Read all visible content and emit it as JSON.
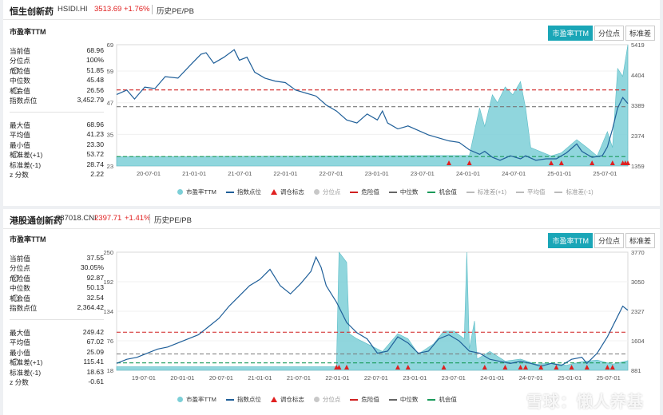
{
  "panels": [
    {
      "title": {
        "name": "恒生创新药",
        "code": "HSIDI.HI",
        "price": "3513.69",
        "change": "+1.76%",
        "history": "历史PE/PB"
      },
      "subtitle": "市盈率TTM",
      "tabs": [
        "市盈率TTM",
        "分位点",
        "标准差"
      ],
      "stats_top": [
        {
          "label": "当前值",
          "value": "68.96",
          "help": false
        },
        {
          "label": "分位点",
          "value": "100%",
          "help": false
        },
        {
          "label": "危险值",
          "value": "51.85",
          "help": true
        },
        {
          "label": "中位数",
          "value": "45.48",
          "help": false
        },
        {
          "label": "机会值",
          "value": "26.56",
          "help": true
        },
        {
          "label": "指数点位",
          "value": "3,452.79",
          "help": false
        }
      ],
      "stats_bottom": [
        {
          "label": "最大值",
          "value": "68.96",
          "help": false
        },
        {
          "label": "平均值",
          "value": "41.23",
          "help": false
        },
        {
          "label": "最小值",
          "value": "23.30",
          "help": false
        },
        {
          "label": "标准差(+1)",
          "value": "53.72",
          "help": true
        },
        {
          "label": "标准差(-1)",
          "value": "28.74",
          "help": false
        },
        {
          "label": "z 分数",
          "value": "2.22",
          "help": false
        }
      ],
      "legend": [
        {
          "label": "市盈率TTM",
          "sym": "dot",
          "color": "#7ccfd7",
          "muted": false
        },
        {
          "label": "指数点位",
          "sym": "line",
          "color": "#1f5f99",
          "muted": false
        },
        {
          "label": "调仓标志",
          "sym": "tri",
          "color": "#e02020",
          "muted": false
        },
        {
          "label": "分位点",
          "sym": "dot",
          "color": "#c8c8c8",
          "muted": true
        },
        {
          "label": "危险值",
          "sym": "dash",
          "color": "#d02020",
          "muted": false
        },
        {
          "label": "中位数",
          "sym": "dash",
          "color": "#666666",
          "muted": false
        },
        {
          "label": "机会值",
          "sym": "dash",
          "color": "#1a9a5a",
          "muted": false
        },
        {
          "label": "标准差(+1)",
          "sym": "dash",
          "color": "#bbbbbb",
          "muted": true
        },
        {
          "label": "平均值",
          "sym": "dash",
          "color": "#bbbbbb",
          "muted": true
        },
        {
          "label": "标准差(-1)",
          "sym": "dash",
          "color": "#bbbbbb",
          "muted": true
        }
      ]
    },
    {
      "title": {
        "name": "港股通创新药",
        "code": "987018.CNI",
        "price": "2397.71",
        "change": "+1.41%",
        "history": "历史PE/PB"
      },
      "subtitle": "市盈率TTM",
      "tabs": [
        "市盈率TTM",
        "分位点",
        "标准差"
      ],
      "stats_top": [
        {
          "label": "当前值",
          "value": "37.55",
          "help": false
        },
        {
          "label": "分位点",
          "value": "30.05%",
          "help": false
        },
        {
          "label": "危险值",
          "value": "92.87",
          "help": true
        },
        {
          "label": "中位数",
          "value": "50.13",
          "help": false
        },
        {
          "label": "机会值",
          "value": "32.54",
          "help": true
        },
        {
          "label": "指数点位",
          "value": "2,364.42",
          "help": false
        }
      ],
      "stats_bottom": [
        {
          "label": "最大值",
          "value": "249.42",
          "help": false
        },
        {
          "label": "平均值",
          "value": "67.02",
          "help": false
        },
        {
          "label": "最小值",
          "value": "25.09",
          "help": false
        },
        {
          "label": "标准差(+1)",
          "value": "115.41",
          "help": true
        },
        {
          "label": "标准差(-1)",
          "value": "18.63",
          "help": false
        },
        {
          "label": "z 分数",
          "value": "-0.61",
          "help": false
        }
      ],
      "legend": [
        {
          "label": "市盈率TTM",
          "sym": "dot",
          "color": "#7ccfd7",
          "muted": false
        },
        {
          "label": "指数点位",
          "sym": "line",
          "color": "#1f5f99",
          "muted": false
        },
        {
          "label": "调仓标志",
          "sym": "tri",
          "color": "#e02020",
          "muted": false
        },
        {
          "label": "分位点",
          "sym": "dot",
          "color": "#c8c8c8",
          "muted": true
        },
        {
          "label": "危险值",
          "sym": "dash",
          "color": "#d02020",
          "muted": false
        },
        {
          "label": "中位数",
          "sym": "dash",
          "color": "#666666",
          "muted": false
        },
        {
          "label": "机会值",
          "sym": "dash",
          "color": "#1a9a5a",
          "muted": false
        }
      ]
    }
  ],
  "watermark": "雪球：懒人养基",
  "chart_data": [
    {
      "type": "area",
      "title": "恒生创新药 市盈率TTM",
      "x_ticks": [
        "20-07-01",
        "21-01-01",
        "21-07-01",
        "22-01-01",
        "22-07-01",
        "23-01-01",
        "23-07-01",
        "24-01-01",
        "24-07-01",
        "25-01-01",
        "25-07-01"
      ],
      "y_left": {
        "ticks": [
          23,
          35,
          47,
          59,
          69
        ],
        "range": [
          23,
          69
        ]
      },
      "y_right": {
        "ticks": [
          1359,
          2374,
          3389,
          4404,
          5419
        ],
        "range": [
          1359,
          5419
        ]
      },
      "reference_lines": {
        "danger": 51.85,
        "median": 45.48,
        "opportunity": 26.56
      },
      "pe_series": [
        [
          0.0,
          26.5
        ],
        [
          0.69,
          27
        ],
        [
          0.71,
          45
        ],
        [
          0.72,
          38
        ],
        [
          0.735,
          50
        ],
        [
          0.745,
          47
        ],
        [
          0.76,
          53
        ],
        [
          0.775,
          50
        ],
        [
          0.79,
          55
        ],
        [
          0.8,
          45
        ],
        [
          0.81,
          30
        ],
        [
          0.85,
          26.8
        ],
        [
          0.87,
          28
        ],
        [
          0.9,
          33
        ],
        [
          0.92,
          30
        ],
        [
          0.94,
          26.8
        ],
        [
          0.96,
          36
        ],
        [
          0.97,
          30
        ],
        [
          0.98,
          60
        ],
        [
          0.99,
          57
        ],
        [
          1.0,
          69
        ]
      ],
      "index_series": [
        [
          0.0,
          3750
        ],
        [
          0.02,
          3900
        ],
        [
          0.035,
          3600
        ],
        [
          0.055,
          4000
        ],
        [
          0.075,
          3950
        ],
        [
          0.095,
          4350
        ],
        [
          0.12,
          4300
        ],
        [
          0.145,
          4750
        ],
        [
          0.165,
          5100
        ],
        [
          0.175,
          5150
        ],
        [
          0.19,
          4800
        ],
        [
          0.21,
          5000
        ],
        [
          0.23,
          5250
        ],
        [
          0.24,
          4900
        ],
        [
          0.255,
          5000
        ],
        [
          0.27,
          4500
        ],
        [
          0.29,
          4300
        ],
        [
          0.31,
          4200
        ],
        [
          0.33,
          4150
        ],
        [
          0.35,
          3900
        ],
        [
          0.37,
          3800
        ],
        [
          0.39,
          3700
        ],
        [
          0.41,
          3400
        ],
        [
          0.43,
          3200
        ],
        [
          0.45,
          2900
        ],
        [
          0.47,
          2800
        ],
        [
          0.49,
          3100
        ],
        [
          0.51,
          2900
        ],
        [
          0.52,
          3200
        ],
        [
          0.53,
          2800
        ],
        [
          0.55,
          2600
        ],
        [
          0.57,
          2700
        ],
        [
          0.59,
          2550
        ],
        [
          0.61,
          2400
        ],
        [
          0.63,
          2300
        ],
        [
          0.65,
          2200
        ],
        [
          0.67,
          2150
        ],
        [
          0.69,
          1900
        ],
        [
          0.71,
          1750
        ],
        [
          0.72,
          1850
        ],
        [
          0.735,
          1650
        ],
        [
          0.75,
          1550
        ],
        [
          0.77,
          1700
        ],
        [
          0.79,
          1600
        ],
        [
          0.8,
          1700
        ],
        [
          0.82,
          1550
        ],
        [
          0.84,
          1600
        ],
        [
          0.86,
          1600
        ],
        [
          0.88,
          1800
        ],
        [
          0.9,
          2100
        ],
        [
          0.91,
          1850
        ],
        [
          0.93,
          1650
        ],
        [
          0.95,
          1700
        ],
        [
          0.96,
          2000
        ],
        [
          0.97,
          2600
        ],
        [
          0.98,
          3300
        ],
        [
          0.99,
          3650
        ],
        [
          1.0,
          3450
        ]
      ],
      "rebalance_marks_x": [
        0.65,
        0.69,
        0.85,
        0.87,
        0.93,
        0.97,
        0.99,
        0.995,
        1.0
      ]
    },
    {
      "type": "area",
      "title": "港股通创新药 市盈率TTM",
      "x_ticks": [
        "19-07-01",
        "20-01-01",
        "20-07-01",
        "21-01-01",
        "21-07-01",
        "22-01-01",
        "22-07-01",
        "23-01-01",
        "23-07-01",
        "24-01-01",
        "24-07-01",
        "25-01-01",
        "25-07-01"
      ],
      "y_left": {
        "ticks": [
          18,
          76,
          134,
          192,
          250
        ],
        "range": [
          18,
          250
        ]
      },
      "y_right": {
        "ticks": [
          881,
          1604,
          2327,
          3050,
          3770
        ],
        "range": [
          881,
          3770
        ]
      },
      "reference_lines": {
        "danger": 92.87,
        "median": 50.13,
        "opportunity": 32.54
      },
      "pe_series": [
        [
          0.0,
          25
        ],
        [
          0.43,
          25
        ],
        [
          0.435,
          250
        ],
        [
          0.45,
          230
        ],
        [
          0.455,
          90
        ],
        [
          0.47,
          80
        ],
        [
          0.49,
          70
        ],
        [
          0.52,
          55
        ],
        [
          0.55,
          90
        ],
        [
          0.57,
          80
        ],
        [
          0.59,
          50
        ],
        [
          0.62,
          70
        ],
        [
          0.64,
          95
        ],
        [
          0.66,
          95
        ],
        [
          0.68,
          80
        ],
        [
          0.685,
          250
        ],
        [
          0.69,
          60
        ],
        [
          0.7,
          115
        ],
        [
          0.705,
          40
        ],
        [
          0.73,
          55
        ],
        [
          0.76,
          36
        ],
        [
          0.79,
          40
        ],
        [
          0.82,
          30
        ],
        [
          0.85,
          32
        ],
        [
          0.88,
          28
        ],
        [
          0.91,
          35
        ],
        [
          0.94,
          38
        ],
        [
          0.97,
          30
        ],
        [
          1.0,
          37
        ]
      ],
      "index_series": [
        [
          0.0,
          1050
        ],
        [
          0.02,
          1150
        ],
        [
          0.04,
          1200
        ],
        [
          0.06,
          1300
        ],
        [
          0.08,
          1400
        ],
        [
          0.1,
          1450
        ],
        [
          0.12,
          1550
        ],
        [
          0.14,
          1650
        ],
        [
          0.16,
          1750
        ],
        [
          0.18,
          1950
        ],
        [
          0.2,
          2150
        ],
        [
          0.22,
          2450
        ],
        [
          0.24,
          2700
        ],
        [
          0.26,
          2950
        ],
        [
          0.28,
          3100
        ],
        [
          0.3,
          3350
        ],
        [
          0.32,
          2950
        ],
        [
          0.34,
          2750
        ],
        [
          0.36,
          3000
        ],
        [
          0.38,
          3300
        ],
        [
          0.39,
          3650
        ],
        [
          0.4,
          3400
        ],
        [
          0.41,
          2950
        ],
        [
          0.43,
          2550
        ],
        [
          0.45,
          2050
        ],
        [
          0.47,
          1800
        ],
        [
          0.49,
          1650
        ],
        [
          0.51,
          1300
        ],
        [
          0.53,
          1350
        ],
        [
          0.55,
          1700
        ],
        [
          0.57,
          1550
        ],
        [
          0.59,
          1300
        ],
        [
          0.61,
          1350
        ],
        [
          0.63,
          1650
        ],
        [
          0.65,
          1750
        ],
        [
          0.67,
          1600
        ],
        [
          0.69,
          1350
        ],
        [
          0.71,
          1300
        ],
        [
          0.73,
          1150
        ],
        [
          0.75,
          1100
        ],
        [
          0.77,
          1050
        ],
        [
          0.79,
          1100
        ],
        [
          0.81,
          1050
        ],
        [
          0.83,
          980
        ],
        [
          0.85,
          1050
        ],
        [
          0.87,
          1000
        ],
        [
          0.89,
          1150
        ],
        [
          0.91,
          1200
        ],
        [
          0.92,
          1050
        ],
        [
          0.94,
          1300
        ],
        [
          0.96,
          1700
        ],
        [
          0.98,
          2200
        ],
        [
          0.99,
          2450
        ],
        [
          1.0,
          2350
        ]
      ],
      "rebalance_marks_x": [
        0.43,
        0.435,
        0.45,
        0.55,
        0.57,
        0.64,
        0.72,
        0.76,
        0.79,
        0.8,
        0.83,
        0.86,
        0.89,
        0.92,
        0.96,
        0.97
      ]
    }
  ]
}
